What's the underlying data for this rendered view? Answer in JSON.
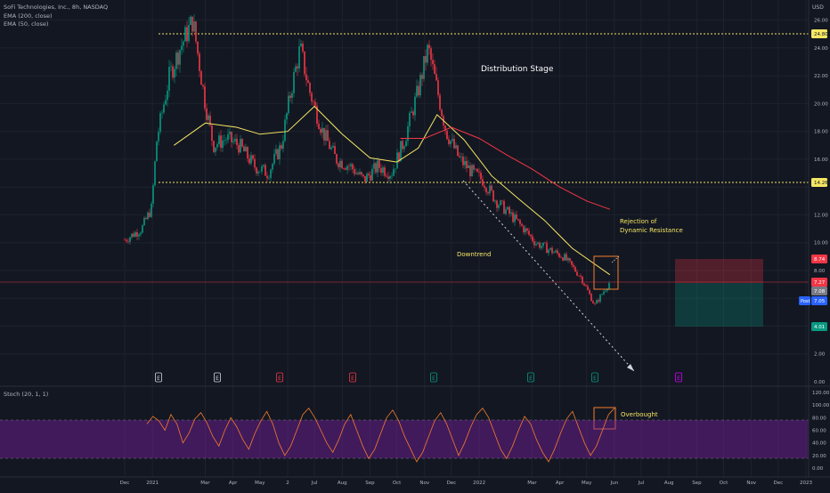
{
  "legend": {
    "symbol": "SoFi Technologies, Inc., 8h, NASDAQ",
    "ema200": "EMA (200, close)",
    "ema50": "EMA (50, close)",
    "stoch": "Stoch (20, 1, 1)"
  },
  "currency": "USD",
  "annotations": {
    "distribution": "Distribution Stage",
    "downtrend": "Downtrend",
    "rejection_line1": "Rejection of",
    "rejection_line2": "Dynamic Resistance",
    "overbought": "Overbought"
  },
  "price_ticks": [
    "26.00",
    "24.00",
    "22.00",
    "20.00",
    "18.00",
    "16.00",
    "12.00",
    "10.00",
    "8.00",
    "6.00",
    "4.00",
    "2.00",
    "0.00"
  ],
  "price_badges": [
    {
      "label": "24.80",
      "color": "#f5e663",
      "text_color": "#131722"
    },
    {
      "label": "14.26",
      "color": "#f5e663",
      "text_color": "#131722"
    },
    {
      "label": "8.74",
      "color": "#f23645",
      "text_color": "#ffffff"
    },
    {
      "label": "7.27",
      "color": "#f23645",
      "text_color": "#ffffff"
    },
    {
      "label": "7.08",
      "color": "#787b86",
      "text_color": "#ffffff"
    },
    {
      "label": "7.05",
      "color": "#2962ff",
      "text_color": "#ffffff"
    },
    {
      "label": "4.01",
      "color": "#089981",
      "text_color": "#ffffff"
    }
  ],
  "post_label": "Post",
  "stoch_ticks": [
    "120.00",
    "100.00",
    "80.00",
    "60.00",
    "40.00",
    "20.00",
    "0.00"
  ],
  "x_labels": [
    "Dec",
    "2021",
    "Mar",
    "Apr",
    "May",
    "2",
    "Jul",
    "Aug",
    "Sep",
    "Oct",
    "Nov",
    "Dec",
    "2022",
    "Mar",
    "Apr",
    "May",
    "Jun",
    "Jul",
    "Aug",
    "Sep",
    "Oct",
    "Nov",
    "Dec",
    "2023"
  ],
  "earnings_markers": [
    {
      "label": "E",
      "color": "#d1d4dc"
    },
    {
      "label": "E",
      "color": "#d1d4dc"
    },
    {
      "label": "E",
      "color": "#f23645"
    },
    {
      "label": "E",
      "color": "#f23645"
    },
    {
      "label": "E",
      "color": "#089981"
    },
    {
      "label": "E",
      "color": "#089981"
    },
    {
      "label": "E",
      "color": "#089981"
    },
    {
      "label": "E",
      "color": "#d500f9"
    }
  ],
  "colors": {
    "background": "#131722",
    "up": "#089981",
    "down": "#f23645",
    "ema50": "#f5e663",
    "ema200": "#f23645",
    "stoch_line": "#f57c2b",
    "stoch_band": "#7b1fa2",
    "level_line": "#f5e663",
    "highlight_box": "#f57c2b"
  },
  "chart_data": [
    {
      "type": "candlestick",
      "title": "SoFi Technologies, Inc., 8h, NASDAQ",
      "ylabel": "USD",
      "ylim": [
        0,
        27
      ],
      "horizontal_levels": [
        24.8,
        14.26
      ],
      "current_price": 7.27,
      "position_tool": {
        "entry": 7.27,
        "stop": 8.74,
        "target": 4.01
      },
      "close_path": [
        {
          "date": "2020-12-01",
          "close": 10.2
        },
        {
          "date": "2020-12-20",
          "close": 11.0
        },
        {
          "date": "2020-12-31",
          "close": 12.5
        },
        {
          "date": "2021-01-06",
          "close": 17.5
        },
        {
          "date": "2021-01-20",
          "close": 22.0
        },
        {
          "date": "2021-02-01",
          "close": 24.0
        },
        {
          "date": "2021-02-15",
          "close": 26.0
        },
        {
          "date": "2021-03-01",
          "close": 20.0
        },
        {
          "date": "2021-03-10",
          "close": 17.0
        },
        {
          "date": "2021-03-25",
          "close": 17.5
        },
        {
          "date": "2021-04-08",
          "close": 17.0
        },
        {
          "date": "2021-04-25",
          "close": 15.5
        },
        {
          "date": "2021-05-10",
          "close": 15.0
        },
        {
          "date": "2021-05-25",
          "close": 17.0
        },
        {
          "date": "2021-06-05",
          "close": 21.0
        },
        {
          "date": "2021-06-15",
          "close": 24.0
        },
        {
          "date": "2021-06-25",
          "close": 21.0
        },
        {
          "date": "2021-07-10",
          "close": 18.0
        },
        {
          "date": "2021-07-25",
          "close": 16.0
        },
        {
          "date": "2021-08-10",
          "close": 15.5
        },
        {
          "date": "2021-08-25",
          "close": 14.5
        },
        {
          "date": "2021-09-10",
          "close": 15.5
        },
        {
          "date": "2021-09-25",
          "close": 15.0
        },
        {
          "date": "2021-10-10",
          "close": 17.5
        },
        {
          "date": "2021-10-25",
          "close": 21.0
        },
        {
          "date": "2021-11-05",
          "close": 24.0
        },
        {
          "date": "2021-11-15",
          "close": 21.0
        },
        {
          "date": "2021-11-25",
          "close": 18.0
        },
        {
          "date": "2021-12-10",
          "close": 16.0
        },
        {
          "date": "2021-12-25",
          "close": 15.0
        },
        {
          "date": "2022-01-05",
          "close": 14.5
        },
        {
          "date": "2022-01-20",
          "close": 13.0
        },
        {
          "date": "2022-02-05",
          "close": 12.0
        },
        {
          "date": "2022-02-20",
          "close": 11.0
        },
        {
          "date": "2022-03-05",
          "close": 10.0
        },
        {
          "date": "2022-03-20",
          "close": 9.5
        },
        {
          "date": "2022-04-05",
          "close": 9.0
        },
        {
          "date": "2022-04-25",
          "close": 7.5
        },
        {
          "date": "2022-05-10",
          "close": 5.5
        },
        {
          "date": "2022-05-20",
          "close": 6.5
        },
        {
          "date": "2022-05-27",
          "close": 7.2
        }
      ],
      "series": [
        {
          "name": "EMA (50, close)",
          "points": [
            {
              "date": "2021-01-25",
              "value": 17.0
            },
            {
              "date": "2021-03-01",
              "value": 18.6
            },
            {
              "date": "2021-04-05",
              "value": 18.3
            },
            {
              "date": "2021-05-01",
              "value": 17.8
            },
            {
              "date": "2021-06-01",
              "value": 18.0
            },
            {
              "date": "2021-07-01",
              "value": 19.8
            },
            {
              "date": "2021-08-01",
              "value": 17.8
            },
            {
              "date": "2021-09-01",
              "value": 16.1
            },
            {
              "date": "2021-10-01",
              "value": 15.8
            },
            {
              "date": "2021-10-25",
              "value": 16.8
            },
            {
              "date": "2021-11-15",
              "value": 19.2
            },
            {
              "date": "2021-12-15",
              "value": 17.4
            },
            {
              "date": "2022-01-15",
              "value": 14.8
            },
            {
              "date": "2022-02-15",
              "value": 13.1
            },
            {
              "date": "2022-03-15",
              "value": 11.6
            },
            {
              "date": "2022-04-15",
              "value": 9.6
            },
            {
              "date": "2022-05-27",
              "value": 7.7
            }
          ]
        },
        {
          "name": "EMA (200, close)",
          "points": [
            {
              "date": "2021-10-05",
              "value": 17.5
            },
            {
              "date": "2021-11-01",
              "value": 17.5
            },
            {
              "date": "2021-12-01",
              "value": 18.3
            },
            {
              "date": "2022-01-01",
              "value": 17.5
            },
            {
              "date": "2022-02-01",
              "value": 16.3
            },
            {
              "date": "2022-03-01",
              "value": 15.3
            },
            {
              "date": "2022-04-01",
              "value": 14.0
            },
            {
              "date": "2022-05-01",
              "value": 13.0
            },
            {
              "date": "2022-05-27",
              "value": 12.4
            }
          ]
        }
      ]
    },
    {
      "type": "line",
      "title": "Stoch (20, 1, 1)",
      "ylim": [
        0,
        120
      ],
      "overbought": 80,
      "oversold": 20,
      "series": [
        {
          "name": "Stoch (20, 1, 1)",
          "values": [
            70,
            82,
            75,
            60,
            85,
            70,
            40,
            55,
            78,
            88,
            72,
            50,
            35,
            60,
            80,
            65,
            45,
            30,
            55,
            75,
            90,
            70,
            40,
            20,
            35,
            60,
            85,
            95,
            80,
            60,
            40,
            25,
            45,
            70,
            85,
            60,
            35,
            15,
            30,
            55,
            80,
            92,
            75,
            50,
            30,
            10,
            25,
            50,
            75,
            88,
            70,
            45,
            20,
            40,
            65,
            85,
            95,
            80,
            55,
            30,
            15,
            35,
            60,
            82,
            70,
            45,
            25,
            10,
            30,
            55,
            78,
            90,
            65,
            40,
            20,
            35,
            60,
            85,
            95
          ]
        }
      ]
    }
  ]
}
